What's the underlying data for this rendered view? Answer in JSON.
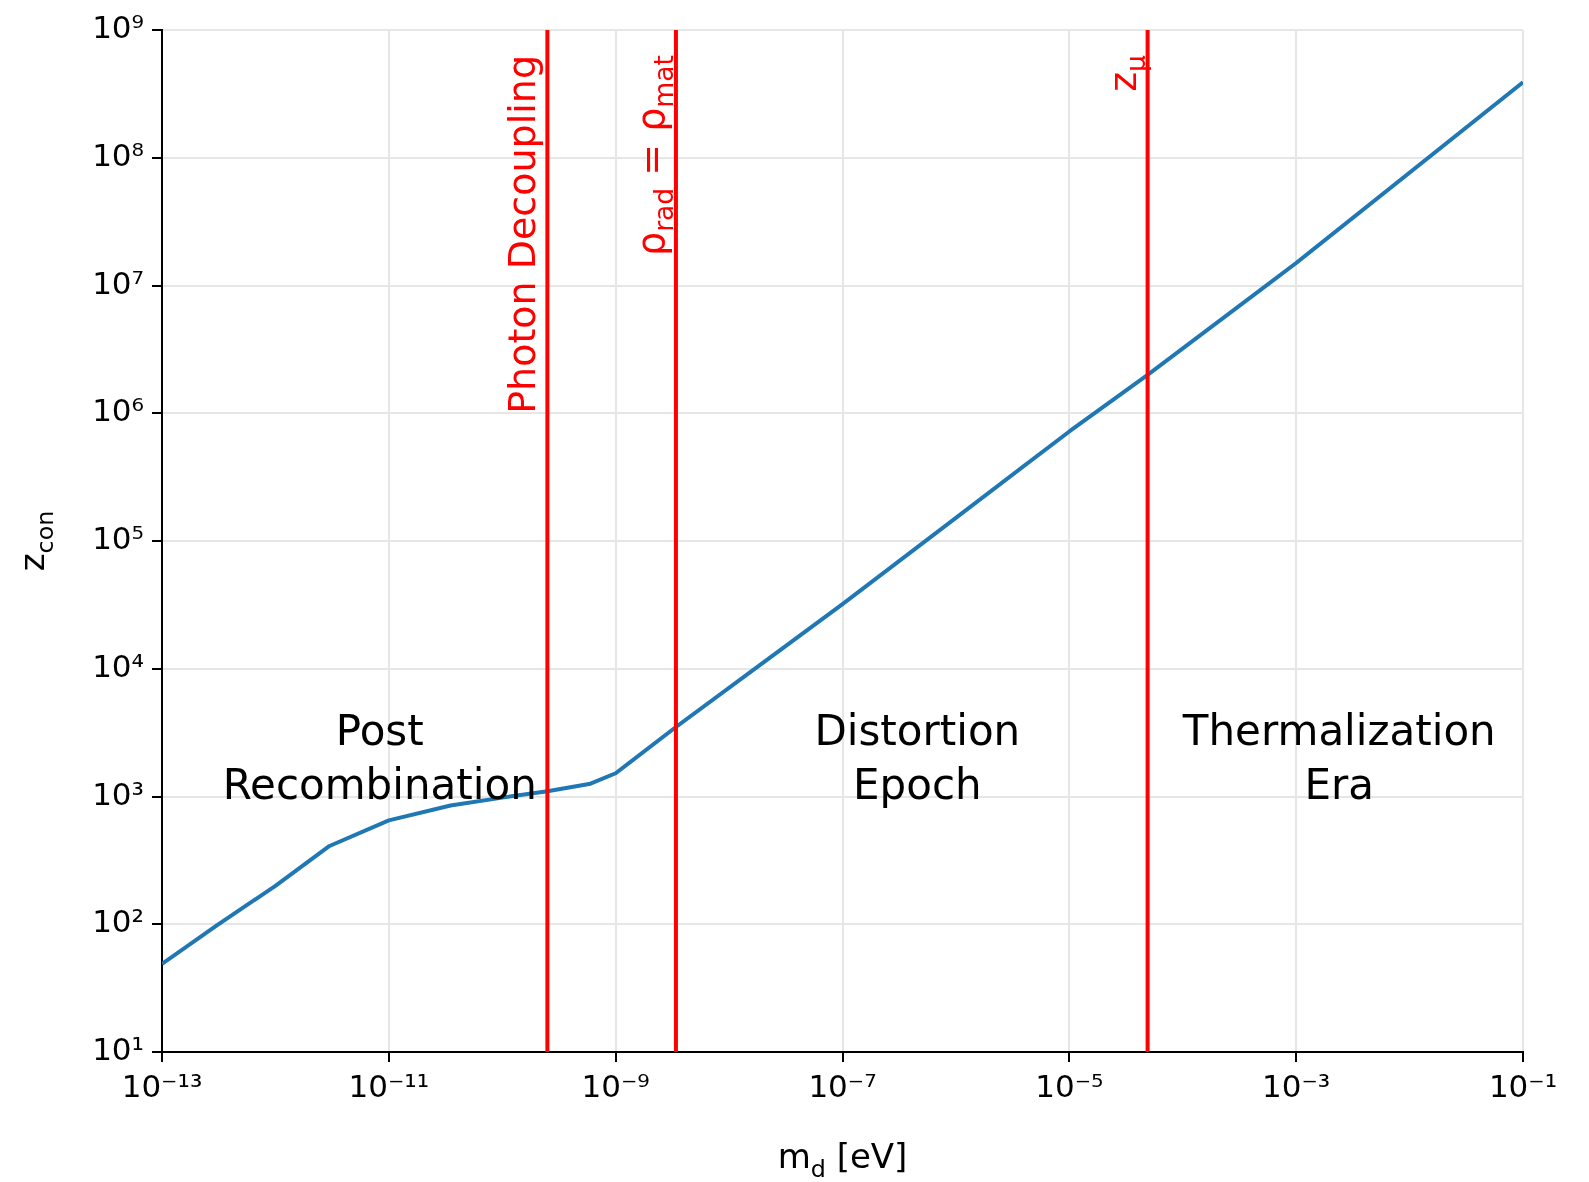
{
  "chart_data": {
    "type": "line",
    "xlabel": "m$_{d}$ [eV]",
    "ylabel": "z$_{con}$",
    "log": "xy",
    "grid": true,
    "legend": false,
    "marker": "none",
    "line_style": "solid",
    "xlim": [
      1e-13,
      0.1
    ],
    "ylim": [
      10,
      1000000000
    ],
    "xticks": [
      {
        "value": 1e-13,
        "label": "10⁻¹³"
      },
      {
        "value": 1e-11,
        "label": "10⁻¹¹"
      },
      {
        "value": 1e-09,
        "label": "10⁻⁹"
      },
      {
        "value": 1e-07,
        "label": "10⁻⁷"
      },
      {
        "value": 1e-05,
        "label": "10⁻⁵"
      },
      {
        "value": 0.001,
        "label": "10⁻³"
      },
      {
        "value": 0.1,
        "label": "10⁻¹"
      }
    ],
    "yticks": [
      {
        "value": 10,
        "label": "10¹"
      },
      {
        "value": 100,
        "label": "10²"
      },
      {
        "value": 1000,
        "label": "10³"
      },
      {
        "value": 10000,
        "label": "10⁴"
      },
      {
        "value": 100000,
        "label": "10⁵"
      },
      {
        "value": 1000000,
        "label": "10⁶"
      },
      {
        "value": 10000000,
        "label": "10⁷"
      },
      {
        "value": 100000000,
        "label": "10⁸"
      },
      {
        "value": 1000000000,
        "label": "10⁹"
      }
    ],
    "series": [
      {
        "color": "#1f77b4",
        "x": [
          1e-13,
          3e-13,
          1e-12,
          3e-12,
          1e-11,
          3.5e-11,
          1e-10,
          2.5e-10,
          6e-10,
          1e-09,
          3.4e-09,
          1e-07,
          1e-05,
          4.9e-05,
          0.001,
          0.1
        ],
        "values": [
          49,
          97,
          200,
          410,
          650,
          850,
          980,
          1100,
          1260,
          1520,
          3500,
          32000,
          720000,
          2000000,
          15000000,
          390000000
        ]
      }
    ],
    "ref_lines": [
      {
        "axis": "x",
        "value": 2.5e-10,
        "label": "Photon Decoupling",
        "color": "#ff0000"
      },
      {
        "axis": "x",
        "value": 3.4e-09,
        "label": "ρ$_{rad}$ = ρ$_{mat}$",
        "color": "#ff0000"
      },
      {
        "axis": "x",
        "value": 4.9e-05,
        "label": "z$_{μ}$",
        "color": "#ff0000"
      }
    ],
    "annotations": [
      "Post Recombination",
      "Distortion Epoch",
      "Thermalization Era"
    ]
  }
}
